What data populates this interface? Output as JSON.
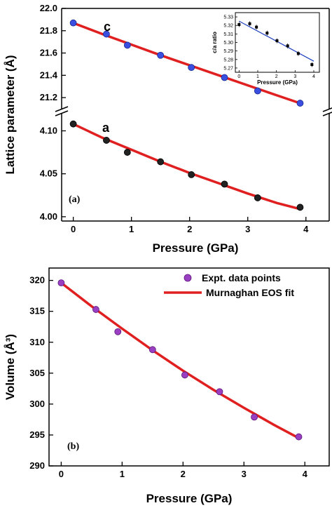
{
  "chart_data": [
    {
      "type": "line",
      "panel_label": "(a)",
      "xlabel": "Pressure (GPa)",
      "ylabel": "Lattice parameter (Å)",
      "xlim": [
        -0.2,
        4.4
      ],
      "xticks": [
        "0",
        "1",
        "2",
        "3",
        "4"
      ],
      "broken_y_axis": true,
      "upper": {
        "curve_label": "c",
        "ylim": [
          21.1,
          22.0
        ],
        "yticks": [
          "21.2",
          "21.4",
          "21.6",
          "21.8",
          "22.0"
        ],
        "x": [
          0.0,
          0.57,
          0.93,
          1.5,
          2.03,
          2.6,
          3.17,
          3.9
        ],
        "y": [
          21.87,
          21.77,
          21.67,
          21.58,
          21.47,
          21.38,
          21.26,
          21.15
        ],
        "fit_x": [
          0,
          0.5,
          1,
          1.5,
          2,
          2.5,
          3,
          3.5,
          3.9
        ],
        "fit_y": [
          21.87,
          21.77,
          21.675,
          21.58,
          21.49,
          21.4,
          21.31,
          21.22,
          21.15
        ]
      },
      "lower": {
        "curve_label": "a",
        "ylim": [
          3.995,
          4.12
        ],
        "yticks": [
          "4.00",
          "4.05",
          "4.10"
        ],
        "x": [
          0.0,
          0.57,
          0.93,
          1.5,
          2.03,
          2.6,
          3.17,
          3.9
        ],
        "y": [
          4.108,
          4.089,
          4.075,
          4.064,
          4.049,
          4.038,
          4.022,
          4.011
        ],
        "fit_x": [
          0,
          0.5,
          1,
          1.5,
          2,
          2.5,
          3,
          3.5,
          3.9
        ],
        "fit_y": [
          4.108,
          4.092,
          4.078,
          4.064,
          4.051,
          4.039,
          4.027,
          4.016,
          4.009
        ]
      },
      "inset": {
        "xlabel": "Pressure (GPa)",
        "ylabel": "c/a ratio",
        "xlim": [
          -0.2,
          4.3
        ],
        "ylim": [
          5.265,
          5.335
        ],
        "xticks": [
          "0",
          "1",
          "2",
          "3",
          "4"
        ],
        "yticks": [
          "5.27",
          "5.28",
          "5.29",
          "5.30",
          "5.31",
          "5.32",
          "5.33"
        ],
        "x": [
          0.0,
          0.57,
          0.93,
          1.5,
          2.03,
          2.6,
          3.17,
          3.9
        ],
        "y": [
          5.321,
          5.322,
          5.318,
          5.311,
          5.302,
          5.296,
          5.287,
          5.274
        ],
        "fit": [
          [
            0.0,
            5.325
          ],
          [
            4.0,
            5.278
          ]
        ]
      }
    },
    {
      "type": "line",
      "panel_label": "(b)",
      "xlabel": "Pressure (GPa)",
      "ylabel": "Volume (Å³)",
      "xlim": [
        -0.2,
        4.4
      ],
      "ylim": [
        290,
        322
      ],
      "xticks": [
        "0",
        "1",
        "2",
        "3",
        "4"
      ],
      "yticks": [
        "290",
        "295",
        "300",
        "305",
        "310",
        "315",
        "320"
      ],
      "series": [
        {
          "name": "Expt. data points",
          "x": [
            0.0,
            0.57,
            0.93,
            1.5,
            2.03,
            2.6,
            3.17,
            3.9
          ],
          "y": [
            319.6,
            315.3,
            311.7,
            308.8,
            304.7,
            302.0,
            297.9,
            294.7
          ]
        },
        {
          "name": "Murnaghan EOS fit",
          "x": [
            0,
            0.5,
            1,
            1.5,
            2,
            2.5,
            3,
            3.5,
            3.9
          ],
          "y": [
            319.6,
            315.8,
            312.2,
            308.7,
            305.4,
            302.3,
            299.4,
            296.6,
            294.5
          ]
        }
      ]
    }
  ]
}
